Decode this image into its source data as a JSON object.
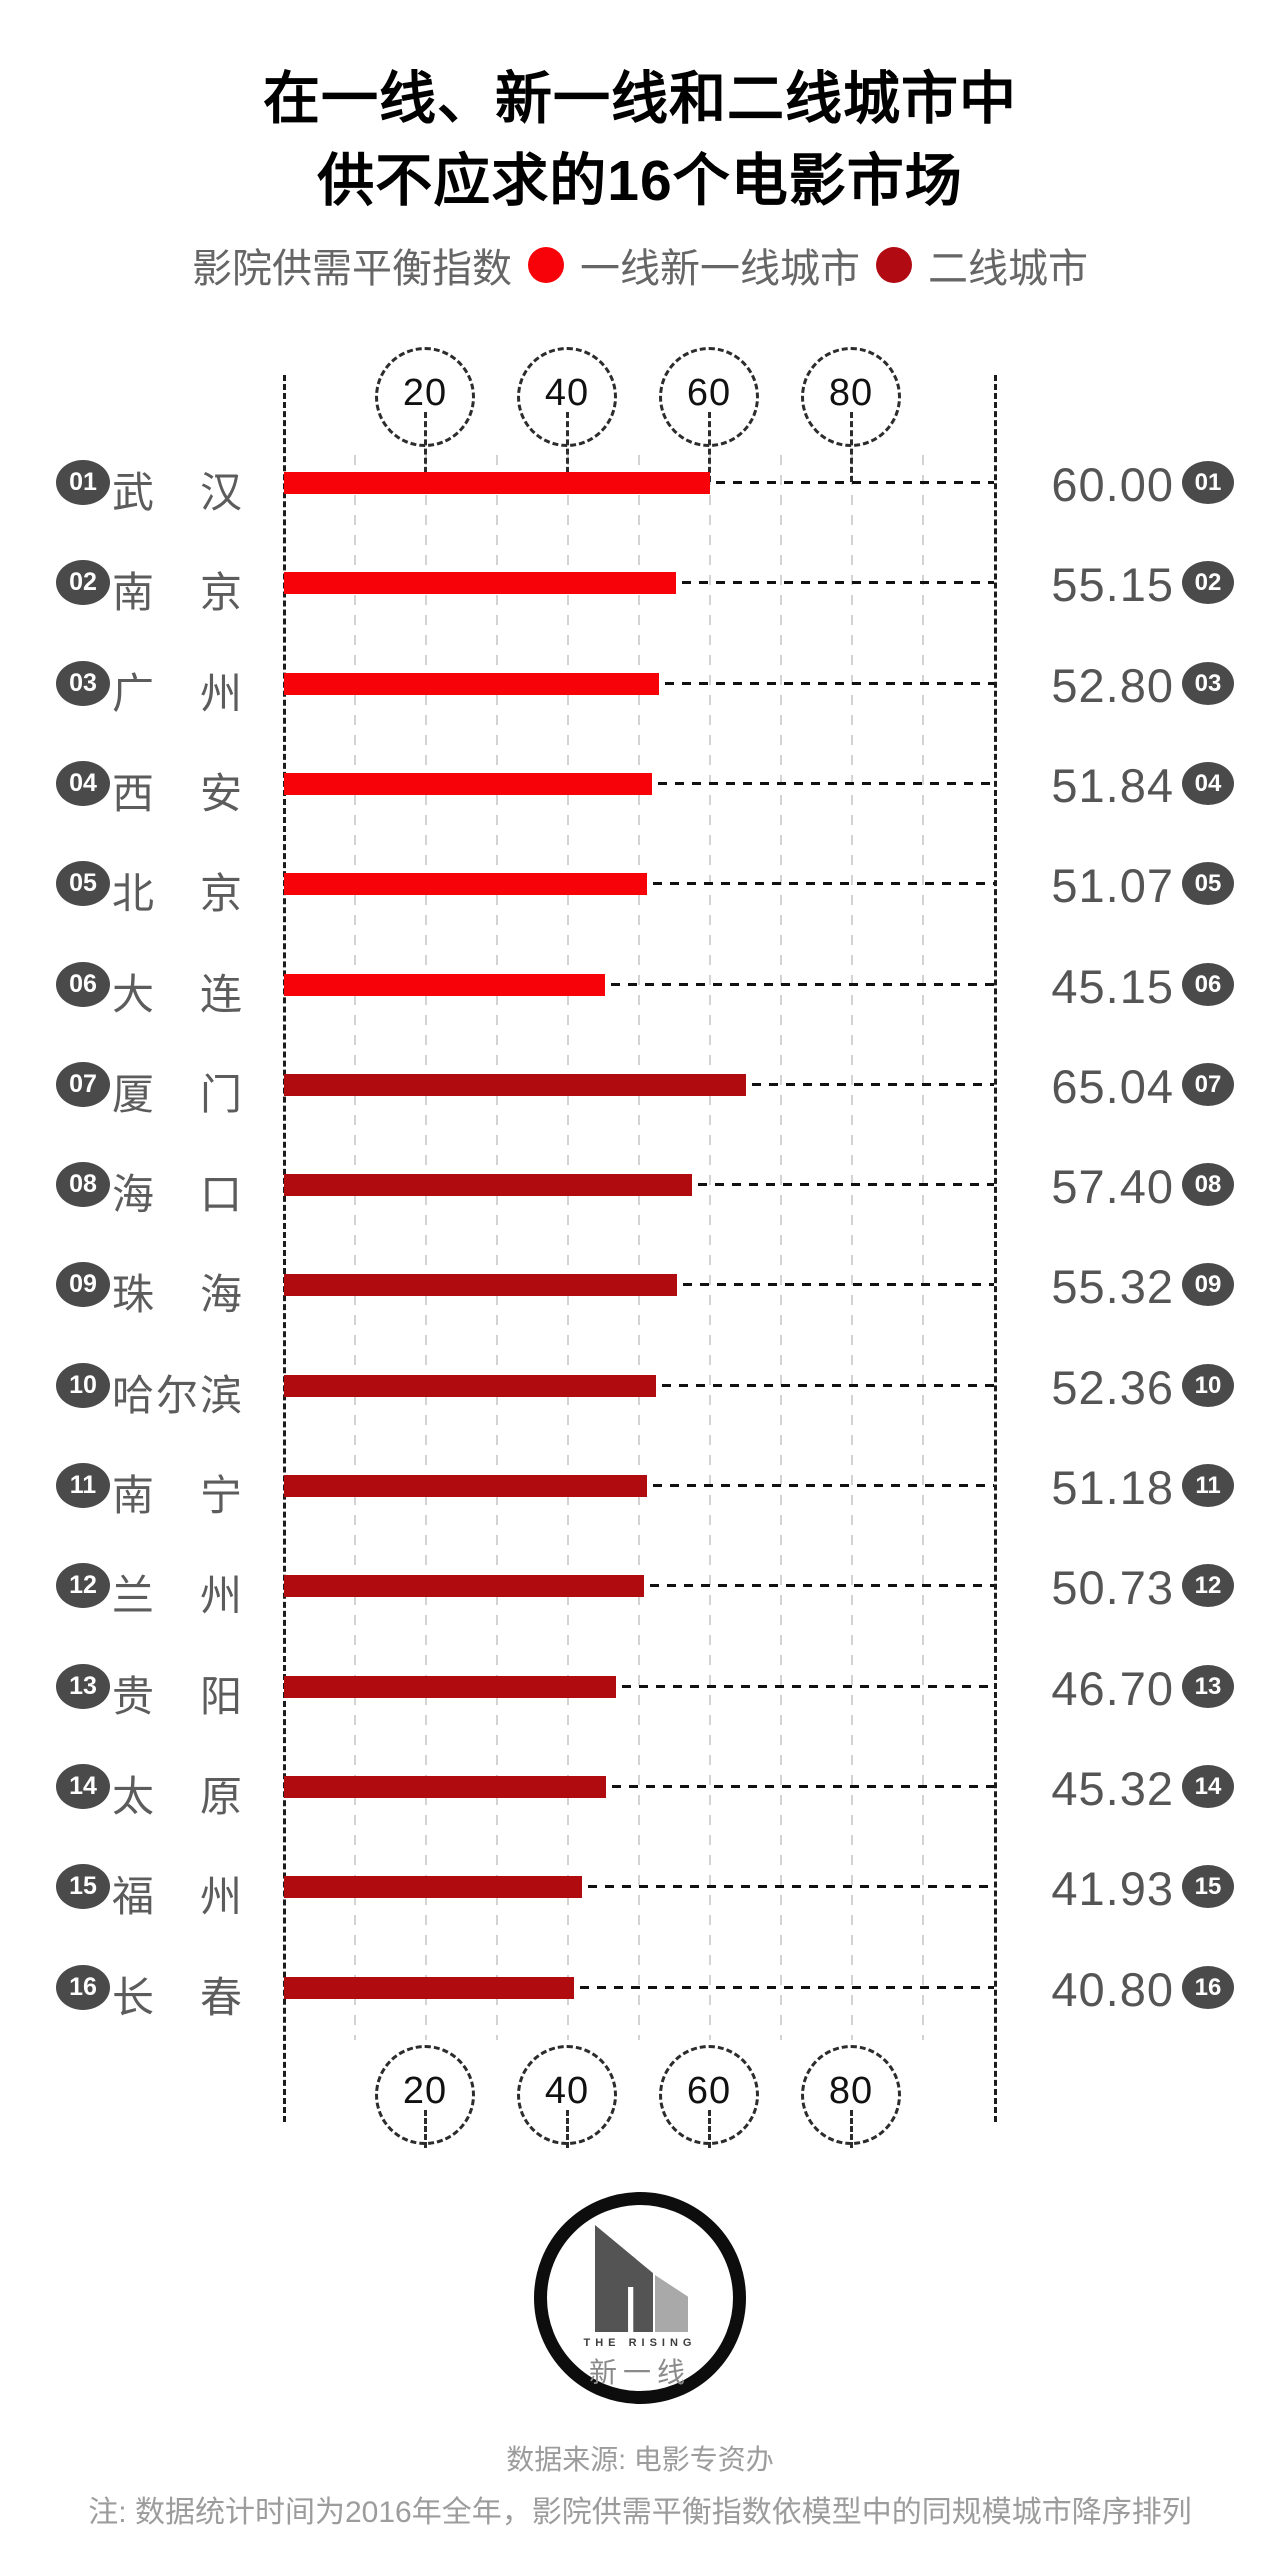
{
  "title": {
    "line1": "在一线、新一线和二线城市中",
    "line2": "供不应求的16个电影市场"
  },
  "legend": {
    "label": "影院供需平衡指数",
    "items": [
      {
        "label": "一线新一线城市",
        "color": "#f70208"
      },
      {
        "label": "二线城市",
        "color": "#b20a12"
      }
    ]
  },
  "chart_data": {
    "type": "bar",
    "orientation": "horizontal",
    "title": "在一线、新一线和二线城市中供不应求的16个电影市场",
    "value_label": "影院供需平衡指数",
    "xlim": [
      0,
      100
    ],
    "axis_ticks": [
      "20",
      "40",
      "60",
      "80"
    ],
    "gridline_step": 10,
    "grid": true,
    "categories": [
      "武汉",
      "南京",
      "广州",
      "西安",
      "北京",
      "大连",
      "厦门",
      "海口",
      "珠海",
      "哈尔滨",
      "南宁",
      "兰州",
      "贵阳",
      "太原",
      "福州",
      "长春"
    ],
    "values": [
      60.0,
      55.15,
      52.8,
      51.84,
      51.07,
      45.15,
      65.04,
      57.4,
      55.32,
      52.36,
      51.18,
      50.73,
      46.7,
      45.32,
      41.93,
      40.8
    ],
    "rows": [
      {
        "rank": "01",
        "city": "武汉",
        "value": 60.0,
        "value_label": "60.00",
        "tier": "tier1"
      },
      {
        "rank": "02",
        "city": "南京",
        "value": 55.15,
        "value_label": "55.15",
        "tier": "tier1"
      },
      {
        "rank": "03",
        "city": "广州",
        "value": 52.8,
        "value_label": "52.80",
        "tier": "tier1"
      },
      {
        "rank": "04",
        "city": "西安",
        "value": 51.84,
        "value_label": "51.84",
        "tier": "tier1"
      },
      {
        "rank": "05",
        "city": "北京",
        "value": 51.07,
        "value_label": "51.07",
        "tier": "tier1"
      },
      {
        "rank": "06",
        "city": "大连",
        "value": 45.15,
        "value_label": "45.15",
        "tier": "tier1"
      },
      {
        "rank": "07",
        "city": "厦门",
        "value": 65.04,
        "value_label": "65.04",
        "tier": "tier2"
      },
      {
        "rank": "08",
        "city": "海口",
        "value": 57.4,
        "value_label": "57.40",
        "tier": "tier2"
      },
      {
        "rank": "09",
        "city": "珠海",
        "value": 55.32,
        "value_label": "55.32",
        "tier": "tier2"
      },
      {
        "rank": "10",
        "city": "哈尔滨",
        "value": 52.36,
        "value_label": "52.36",
        "tier": "tier2"
      },
      {
        "rank": "11",
        "city": "南宁",
        "value": 51.18,
        "value_label": "51.18",
        "tier": "tier2"
      },
      {
        "rank": "12",
        "city": "兰州",
        "value": 50.73,
        "value_label": "50.73",
        "tier": "tier2"
      },
      {
        "rank": "13",
        "city": "贵阳",
        "value": 46.7,
        "value_label": "46.70",
        "tier": "tier2"
      },
      {
        "rank": "14",
        "city": "太原",
        "value": 45.32,
        "value_label": "45.32",
        "tier": "tier2"
      },
      {
        "rank": "15",
        "city": "福州",
        "value": 41.93,
        "value_label": "41.93",
        "tier": "tier2"
      },
      {
        "rank": "16",
        "city": "长春",
        "value": 40.8,
        "value_label": "40.80",
        "tier": "tier2"
      }
    ],
    "colors": {
      "tier1": "#f70208",
      "tier2": "#b00b0e"
    },
    "legend_position": "top"
  },
  "logo": {
    "brand_en": "THE RISING",
    "brand_cn": "新一线"
  },
  "footer": {
    "source": "数据来源: 电影专资办",
    "note": "注: 数据统计时间为2016年全年，影院供需平衡指数依模型中的同规模城市降序排列"
  }
}
